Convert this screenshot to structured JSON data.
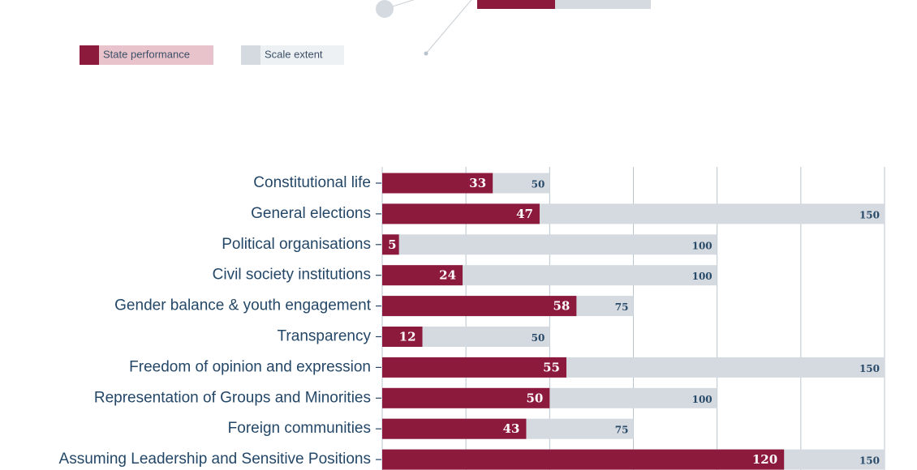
{
  "chart_data": {
    "type": "barh",
    "categories": [
      "Constitutional life",
      "General elections",
      "Political organisations",
      "Civil society institutions",
      "Gender balance & youth engagement",
      "Transparency",
      "Freedom of opinion and expression",
      "Representation of Groups and Minorities",
      "Foreign communities",
      "Assuming Leadership and Sensitive Positions"
    ],
    "series": [
      {
        "name": "State performance",
        "color": "#8c1a3c",
        "values": [
          33,
          47,
          5,
          24,
          58,
          12,
          55,
          50,
          43,
          120
        ]
      },
      {
        "name": "Scale extent",
        "color": "#d4dadf",
        "values": [
          50,
          150,
          100,
          100,
          75,
          50,
          150,
          100,
          75,
          150
        ]
      }
    ],
    "xlim": [
      0,
      150
    ],
    "xticks": [
      0,
      25,
      50,
      75,
      100,
      125,
      150
    ],
    "grid": true
  }
}
